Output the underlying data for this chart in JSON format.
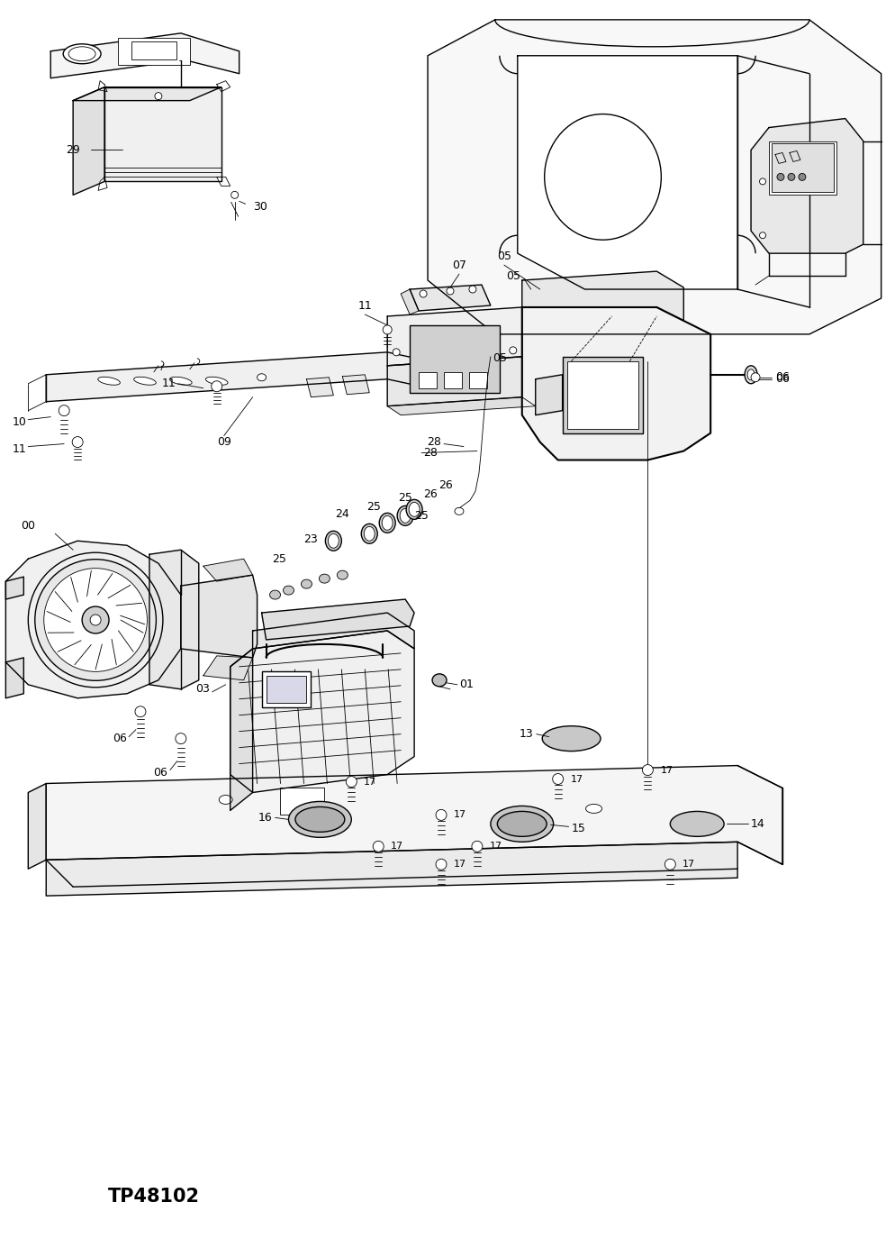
{
  "background_color": "#ffffff",
  "figure_width": 9.95,
  "figure_height": 13.85,
  "dpi": 100,
  "label_text": "TP48102",
  "label_fontsize": 15,
  "label_fontweight": "bold",
  "line_color": "#000000",
  "line_width": 1.0,
  "thin_lw": 0.6,
  "thick_lw": 1.5
}
